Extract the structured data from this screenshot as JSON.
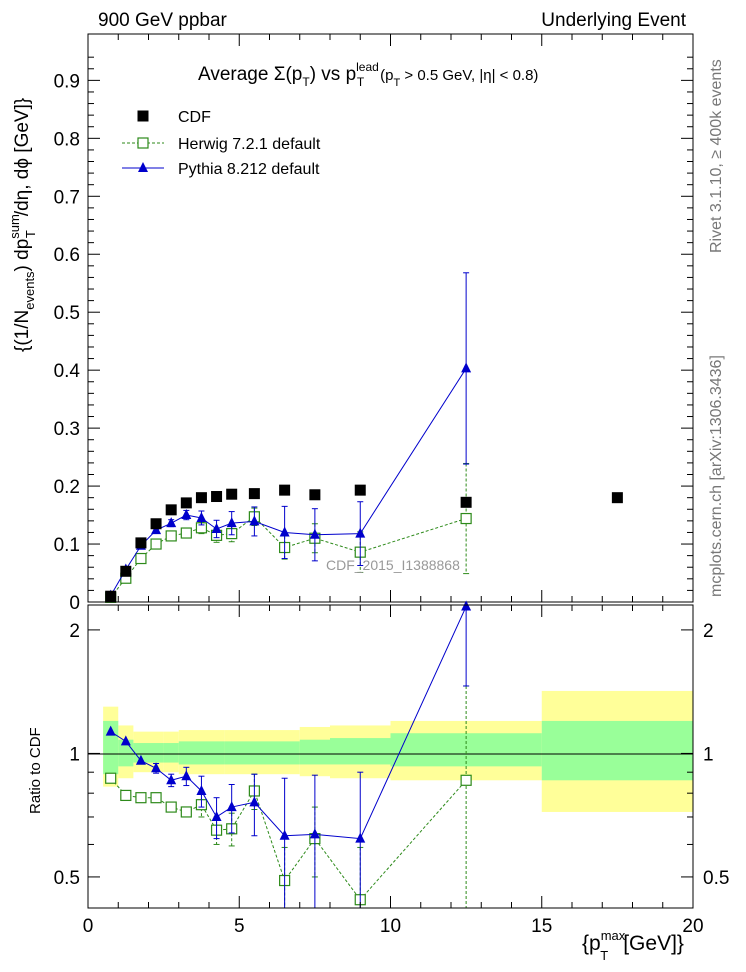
{
  "header": {
    "left": "900 GeV ppbar",
    "right": "Underlying Event"
  },
  "side_labels": {
    "rivet": "Rivet 3.1.10, ≥ 400k events",
    "mcplots": "mcplots.cern.ch [arXiv:1306.3436]"
  },
  "chart_data": [
    {
      "type": "scatter",
      "panel": "main",
      "title": "Average Σ(p_T) vs p_T^lead (p_T > 0.5 GeV, |η| < 0.8)",
      "ylabel": "{(1/N_events) dp_T^sum/dη, dϕ [GeV]}",
      "xlim": [
        0,
        20
      ],
      "ylim": [
        0,
        0.98
      ],
      "yticks": [
        "0",
        "0.1",
        "0.2",
        "0.3",
        "0.4",
        "0.5",
        "0.6",
        "0.7",
        "0.8",
        "0.9"
      ],
      "watermark": "CDF_2015_I1388868",
      "legend": [
        "CDF",
        "Herwig 7.2.1 default",
        "Pythia 8.212 default"
      ],
      "series": [
        {
          "name": "CDF",
          "color": "#000000",
          "marker": "filled-square",
          "x": [
            0.75,
            1.25,
            1.75,
            2.25,
            2.75,
            3.25,
            3.75,
            4.25,
            4.75,
            5.5,
            6.5,
            7.5,
            9.0,
            12.5,
            17.5
          ],
          "y": [
            0.01,
            0.053,
            0.102,
            0.135,
            0.159,
            0.171,
            0.18,
            0.182,
            0.186,
            0.187,
            0.193,
            0.185,
            0.193,
            0.172,
            0.18
          ]
        },
        {
          "name": "Herwig 7.2.1 default",
          "color": "#2d8a1a",
          "marker": "open-square",
          "line": "dashed",
          "x": [
            0.75,
            1.25,
            1.75,
            2.25,
            2.75,
            3.25,
            3.75,
            4.25,
            4.75,
            5.5,
            6.5,
            7.5,
            9.0,
            12.5
          ],
          "y": [
            0.008,
            0.041,
            0.075,
            0.1,
            0.114,
            0.119,
            0.128,
            0.115,
            0.118,
            0.147,
            0.094,
            0.11,
            0.086,
            0.144
          ],
          "err": [
            0,
            0,
            0,
            0,
            0,
            0,
            0.01,
            0.012,
            0.014,
            0.015,
            0.02,
            0.025,
            0.035,
            0.095
          ]
        },
        {
          "name": "Pythia 8.212 default",
          "color": "#0000cc",
          "marker": "filled-triangle",
          "x": [
            0.75,
            1.25,
            1.75,
            2.25,
            2.75,
            3.25,
            3.75,
            4.25,
            4.75,
            5.5,
            6.5,
            7.5,
            9.0,
            12.5
          ],
          "y": [
            0.011,
            0.056,
            0.097,
            0.124,
            0.136,
            0.15,
            0.145,
            0.126,
            0.136,
            0.139,
            0.12,
            0.116,
            0.118,
            0.403
          ],
          "err": [
            0,
            0,
            0,
            0.004,
            0.006,
            0.008,
            0.012,
            0.015,
            0.02,
            0.025,
            0.045,
            0.045,
            0.055,
            0.165
          ]
        }
      ]
    },
    {
      "type": "scatter",
      "panel": "ratio",
      "ylabel": "Ratio to CDF",
      "xlabel": "{p_T^max [GeV]}",
      "xlim": [
        0,
        20
      ],
      "ylim": [
        0.42,
        2.3
      ],
      "yticks": [
        "0.5",
        "1",
        "2"
      ],
      "xticks": [
        "0",
        "5",
        "10",
        "15",
        "20"
      ],
      "bands": [
        {
          "x0": 0.5,
          "x1": 1.0,
          "yellow": [
            0.83,
            1.3
          ],
          "green": [
            0.89,
            1.2
          ]
        },
        {
          "x0": 1.0,
          "x1": 1.5,
          "yellow": [
            0.87,
            1.17
          ],
          "green": [
            0.93,
            1.08
          ]
        },
        {
          "x0": 1.5,
          "x1": 2.0,
          "yellow": [
            0.9,
            1.13
          ],
          "green": [
            0.95,
            1.06
          ]
        },
        {
          "x0": 2.0,
          "x1": 2.5,
          "yellow": [
            0.9,
            1.13
          ],
          "green": [
            0.95,
            1.06
          ]
        },
        {
          "x0": 2.5,
          "x1": 3.0,
          "yellow": [
            0.9,
            1.13
          ],
          "green": [
            0.95,
            1.06
          ]
        },
        {
          "x0": 3.0,
          "x1": 4.5,
          "yellow": [
            0.89,
            1.14
          ],
          "green": [
            0.94,
            1.07
          ]
        },
        {
          "x0": 4.5,
          "x1": 7.0,
          "yellow": [
            0.89,
            1.14
          ],
          "green": [
            0.94,
            1.07
          ]
        },
        {
          "x0": 7.0,
          "x1": 8.0,
          "yellow": [
            0.88,
            1.16
          ],
          "green": [
            0.94,
            1.08
          ]
        },
        {
          "x0": 8.0,
          "x1": 10.0,
          "yellow": [
            0.87,
            1.17
          ],
          "green": [
            0.94,
            1.09
          ]
        },
        {
          "x0": 10.0,
          "x1": 15.0,
          "yellow": [
            0.86,
            1.2
          ],
          "green": [
            0.93,
            1.12
          ]
        },
        {
          "x0": 15.0,
          "x1": 20.0,
          "yellow": [
            0.72,
            1.42
          ],
          "green": [
            0.86,
            1.2
          ]
        }
      ],
      "series": [
        {
          "name": "Herwig 7.2.1 default",
          "color": "#2d8a1a",
          "marker": "open-square",
          "line": "dashed",
          "x": [
            0.75,
            1.25,
            1.75,
            2.25,
            2.75,
            3.25,
            3.75,
            4.25,
            4.75,
            5.5,
            6.5,
            7.5,
            9.0,
            12.5
          ],
          "y": [
            0.87,
            0.79,
            0.78,
            0.78,
            0.74,
            0.72,
            0.75,
            0.65,
            0.655,
            0.81,
            0.49,
            0.62,
            0.44,
            0.86
          ],
          "err": [
            0,
            0,
            0,
            0,
            0,
            0,
            0.05,
            0.05,
            0.06,
            0.08,
            0.1,
            0.12,
            0.15,
            0.6
          ]
        },
        {
          "name": "Pythia 8.212 default",
          "color": "#0000cc",
          "marker": "filled-triangle",
          "x": [
            0.75,
            1.25,
            1.75,
            2.25,
            2.75,
            3.25,
            3.75,
            4.25,
            4.75,
            5.5,
            6.5,
            7.5,
            9.0,
            12.5
          ],
          "y": [
            1.13,
            1.07,
            0.96,
            0.92,
            0.86,
            0.88,
            0.81,
            0.7,
            0.74,
            0.76,
            0.63,
            0.635,
            0.62,
            2.28
          ],
          "err": [
            0,
            0,
            0,
            0.025,
            0.03,
            0.045,
            0.07,
            0.08,
            0.1,
            0.13,
            0.24,
            0.25,
            0.28,
            0.82
          ]
        }
      ]
    }
  ]
}
